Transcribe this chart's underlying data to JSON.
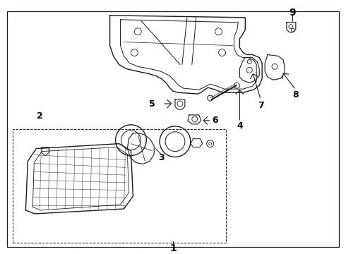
{
  "background_color": "#ffffff",
  "line_color": "#1a1a1a",
  "text_color": "#000000",
  "fig_width": 4.9,
  "fig_height": 3.6,
  "dpi": 100
}
